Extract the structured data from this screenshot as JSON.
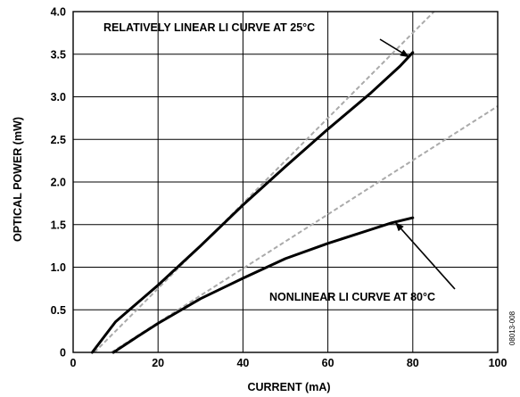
{
  "chart_data": {
    "type": "line",
    "xlabel": "CURRENT (mA)",
    "ylabel": "OPTICAL POWER (mW)",
    "xlim": [
      0,
      100
    ],
    "ylim": [
      0,
      4.0
    ],
    "x_ticks": [
      "0",
      "20",
      "40",
      "60",
      "80",
      "100"
    ],
    "y_ticks": [
      "0",
      "0.5",
      "1.0",
      "1.5",
      "2.0",
      "2.5",
      "3.0",
      "3.5",
      "4.0"
    ],
    "x_tick_values": [
      0,
      20,
      40,
      60,
      80,
      100
    ],
    "y_tick_values": [
      0,
      0.5,
      1.0,
      1.5,
      2.0,
      2.5,
      3.0,
      3.5,
      4.0
    ],
    "grid": true,
    "series": [
      {
        "style": "solid",
        "color": "#000000",
        "x": [
          4.5,
          10,
          20,
          30,
          40,
          50,
          60,
          70,
          77,
          80
        ],
        "y": [
          0,
          0.36,
          0.79,
          1.25,
          1.73,
          2.18,
          2.62,
          3.04,
          3.36,
          3.52
        ]
      },
      {
        "style": "dashed",
        "color": "#aaaaaa",
        "x": [
          5,
          85
        ],
        "y": [
          0,
          4.0
        ]
      },
      {
        "style": "solid",
        "color": "#000000",
        "x": [
          9.5,
          15,
          20,
          30,
          40,
          50,
          60,
          70,
          75,
          80
        ],
        "y": [
          0,
          0.18,
          0.34,
          0.63,
          0.87,
          1.1,
          1.28,
          1.44,
          1.52,
          1.58
        ]
      },
      {
        "style": "dashed",
        "color": "#aaaaaa",
        "x": [
          9,
          100
        ],
        "y": [
          0,
          2.89
        ]
      }
    ],
    "annotations": [
      {
        "text": "RELATIVELY LINEAR LI CURVE AT 25°C",
        "arrow_to": [
          79,
          3.47
        ]
      },
      {
        "text": "NONLINEAR LI CURVE AT 80°C",
        "arrow_to": [
          76,
          1.52
        ]
      }
    ]
  },
  "figure_id": "08013-008"
}
